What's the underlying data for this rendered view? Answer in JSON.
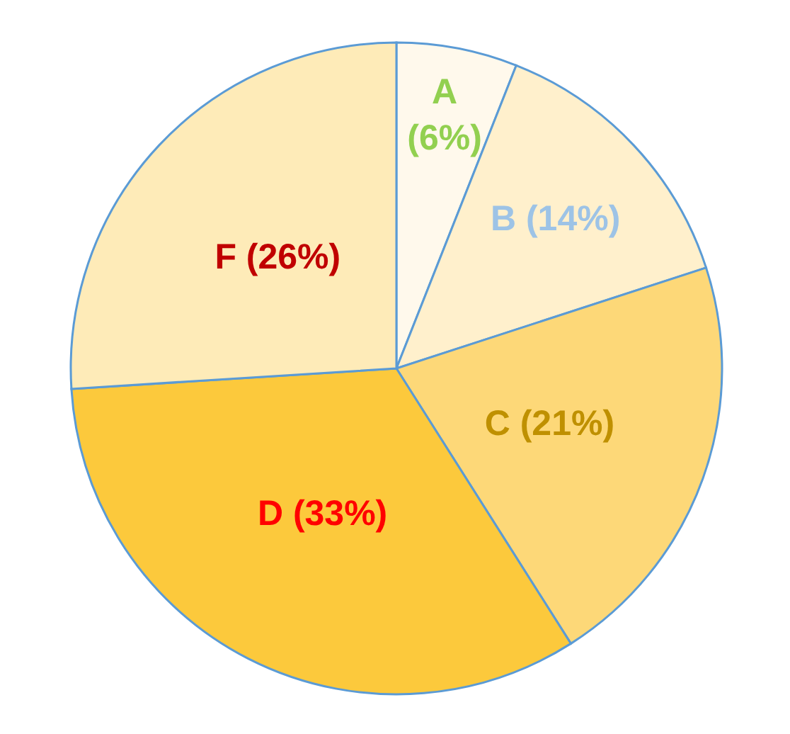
{
  "chart_data": {
    "type": "pie",
    "categories": [
      "A",
      "B",
      "C",
      "D",
      "F"
    ],
    "values": [
      6,
      14,
      21,
      33,
      26
    ],
    "value_labels": [
      "(6%)",
      "(14%)",
      "(21%)",
      "(33%)",
      "(26%)"
    ],
    "colors": [
      "#fff9ec",
      "#fff0cc",
      "#fdd878",
      "#fcc93c",
      "#feebb8"
    ]
  }
}
